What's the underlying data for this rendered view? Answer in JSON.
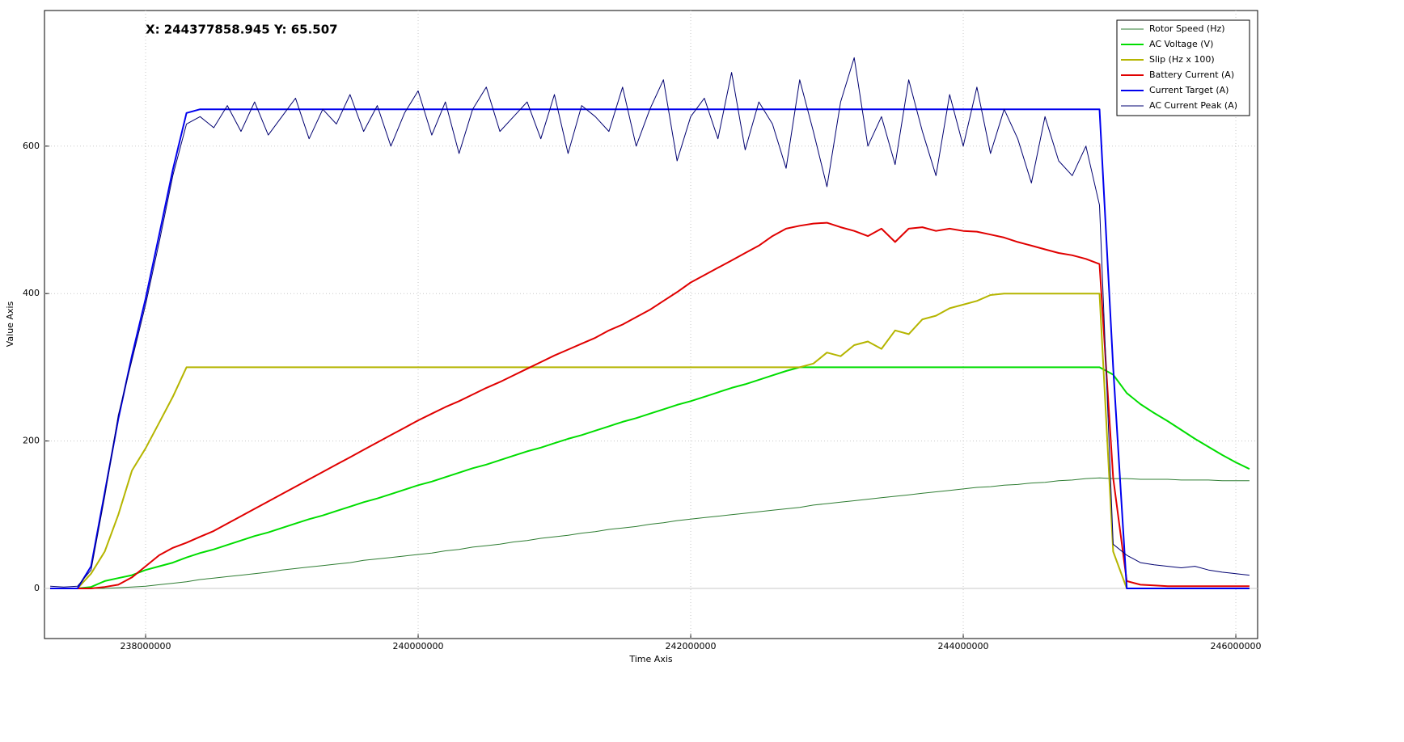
{
  "chart_data": {
    "type": "line",
    "annotation": "X: 244377858.945 Y: 65.507",
    "xlabel": "Time Axis",
    "ylabel": "Value Axis",
    "x": [
      237300000,
      237400000,
      237500000,
      237600000,
      237700000,
      237800000,
      237900000,
      238000000,
      238100000,
      238200000,
      238300000,
      238400000,
      238500000,
      238600000,
      238700000,
      238800000,
      238900000,
      239000000,
      239100000,
      239200000,
      239300000,
      239400000,
      239500000,
      239600000,
      239700000,
      239800000,
      239900000,
      240000000,
      240100000,
      240200000,
      240300000,
      240400000,
      240500000,
      240600000,
      240700000,
      240800000,
      240900000,
      241000000,
      241100000,
      241200000,
      241300000,
      241400000,
      241500000,
      241600000,
      241700000,
      241800000,
      241900000,
      242000000,
      242100000,
      242200000,
      242300000,
      242400000,
      242500000,
      242600000,
      242700000,
      242800000,
      242900000,
      243000000,
      243100000,
      243200000,
      243300000,
      243400000,
      243500000,
      243600000,
      243700000,
      243800000,
      243900000,
      244000000,
      244100000,
      244200000,
      244300000,
      244400000,
      244500000,
      244600000,
      244700000,
      244800000,
      244900000,
      245000000,
      245100000,
      245200000,
      245300000,
      245400000,
      245500000,
      245600000,
      245700000,
      245800000,
      245900000,
      246000000,
      246100000
    ],
    "series": [
      {
        "name": "Rotor Speed (Hz)",
        "color": "#2e7d32",
        "width": 1,
        "values": [
          0,
          0,
          0,
          0,
          0,
          1,
          2,
          3,
          5,
          7,
          9,
          12,
          14,
          16,
          18,
          20,
          22,
          25,
          27,
          29,
          31,
          33,
          35,
          38,
          40,
          42,
          44,
          46,
          48,
          51,
          53,
          56,
          58,
          60,
          63,
          65,
          68,
          70,
          72,
          75,
          77,
          80,
          82,
          84,
          87,
          89,
          92,
          94,
          96,
          98,
          100,
          102,
          104,
          106,
          108,
          110,
          113,
          115,
          117,
          119,
          121,
          123,
          125,
          127,
          129,
          131,
          133,
          135,
          137,
          138,
          140,
          141,
          143,
          144,
          146,
          147,
          149,
          150,
          149,
          149,
          148,
          148,
          148,
          147,
          147,
          147,
          146,
          146,
          146
        ]
      },
      {
        "name": "AC Voltage (V)",
        "color": "#00dd00",
        "width": 2,
        "values": [
          0,
          0,
          0,
          2,
          10,
          14,
          18,
          25,
          30,
          35,
          42,
          48,
          53,
          59,
          65,
          71,
          76,
          82,
          88,
          94,
          99,
          105,
          111,
          117,
          122,
          128,
          134,
          140,
          145,
          151,
          157,
          163,
          168,
          174,
          180,
          186,
          191,
          197,
          203,
          208,
          214,
          220,
          226,
          231,
          237,
          243,
          249,
          254,
          260,
          266,
          272,
          277,
          283,
          289,
          295,
          300,
          300,
          300,
          300,
          300,
          300,
          300,
          300,
          300,
          300,
          300,
          300,
          300,
          300,
          300,
          300,
          300,
          300,
          300,
          300,
          300,
          300,
          300,
          290,
          265,
          250,
          238,
          227,
          215,
          203,
          192,
          181,
          171,
          162
        ]
      },
      {
        "name": "Slip (Hz x 100)",
        "color": "#b5b500",
        "width": 2,
        "values": [
          0,
          0,
          0,
          20,
          50,
          100,
          160,
          190,
          225,
          260,
          300,
          300,
          300,
          300,
          300,
          300,
          300,
          300,
          300,
          300,
          300,
          300,
          300,
          300,
          300,
          300,
          300,
          300,
          300,
          300,
          300,
          300,
          300,
          300,
          300,
          300,
          300,
          300,
          300,
          300,
          300,
          300,
          300,
          300,
          300,
          300,
          300,
          300,
          300,
          300,
          300,
          300,
          300,
          300,
          300,
          300,
          305,
          320,
          315,
          330,
          335,
          325,
          350,
          345,
          365,
          370,
          380,
          385,
          390,
          398,
          400,
          400,
          400,
          400,
          400,
          400,
          400,
          400,
          50,
          0,
          0,
          0,
          0,
          0,
          0,
          0,
          0,
          0,
          0
        ]
      },
      {
        "name": "Battery Current (A)",
        "color": "#e00000",
        "width": 2,
        "values": [
          0,
          0,
          0,
          0,
          2,
          5,
          15,
          30,
          45,
          55,
          62,
          70,
          78,
          88,
          98,
          108,
          118,
          128,
          138,
          148,
          158,
          168,
          178,
          188,
          198,
          208,
          218,
          228,
          237,
          246,
          254,
          263,
          272,
          280,
          289,
          298,
          307,
          316,
          324,
          332,
          340,
          350,
          358,
          368,
          378,
          390,
          402,
          415,
          425,
          435,
          445,
          455,
          465,
          478,
          488,
          492,
          495,
          496,
          490,
          485,
          478,
          488,
          470,
          488,
          490,
          485,
          488,
          485,
          484,
          480,
          476,
          470,
          465,
          460,
          455,
          452,
          447,
          440,
          150,
          10,
          5,
          4,
          3,
          3,
          3,
          3,
          3,
          3,
          3
        ]
      },
      {
        "name": "Current Target (A)",
        "color": "#0000ee",
        "width": 2,
        "values": [
          0,
          0,
          0,
          30,
          130,
          230,
          316,
          393,
          480,
          568,
          645,
          650,
          650,
          650,
          650,
          650,
          650,
          650,
          650,
          650,
          650,
          650,
          650,
          650,
          650,
          650,
          650,
          650,
          650,
          650,
          650,
          650,
          650,
          650,
          650,
          650,
          650,
          650,
          650,
          650,
          650,
          650,
          650,
          650,
          650,
          650,
          650,
          650,
          650,
          650,
          650,
          650,
          650,
          650,
          650,
          650,
          650,
          650,
          650,
          650,
          650,
          650,
          650,
          650,
          650,
          650,
          650,
          650,
          650,
          650,
          650,
          650,
          650,
          650,
          650,
          650,
          650,
          650,
          300,
          0,
          0,
          0,
          0,
          0,
          0,
          0,
          0,
          0,
          0
        ]
      },
      {
        "name": "AC Current Peak (A)",
        "color": "#000070",
        "width": 1,
        "values": [
          3,
          2,
          3,
          25,
          125,
          235,
          310,
          385,
          470,
          560,
          630,
          640,
          625,
          655,
          620,
          660,
          615,
          640,
          665,
          610,
          650,
          630,
          670,
          620,
          655,
          600,
          645,
          675,
          615,
          660,
          590,
          650,
          680,
          620,
          640,
          660,
          610,
          670,
          590,
          655,
          640,
          620,
          680,
          600,
          650,
          690,
          580,
          640,
          665,
          610,
          700,
          595,
          660,
          630,
          570,
          690,
          620,
          545,
          660,
          720,
          600,
          640,
          575,
          690,
          620,
          560,
          670,
          600,
          680,
          590,
          650,
          610,
          550,
          640,
          580,
          560,
          600,
          520,
          60,
          45,
          35,
          32,
          30,
          28,
          30,
          25,
          22,
          20,
          18
        ]
      }
    ],
    "xlim": [
      237258000,
      246160000
    ],
    "ylim": [
      -68,
      784
    ],
    "xticks": [
      238000000,
      240000000,
      242000000,
      244000000,
      246000000
    ],
    "yticks": [
      0,
      200,
      400,
      600
    ],
    "grid": true,
    "legend": "upper right"
  }
}
